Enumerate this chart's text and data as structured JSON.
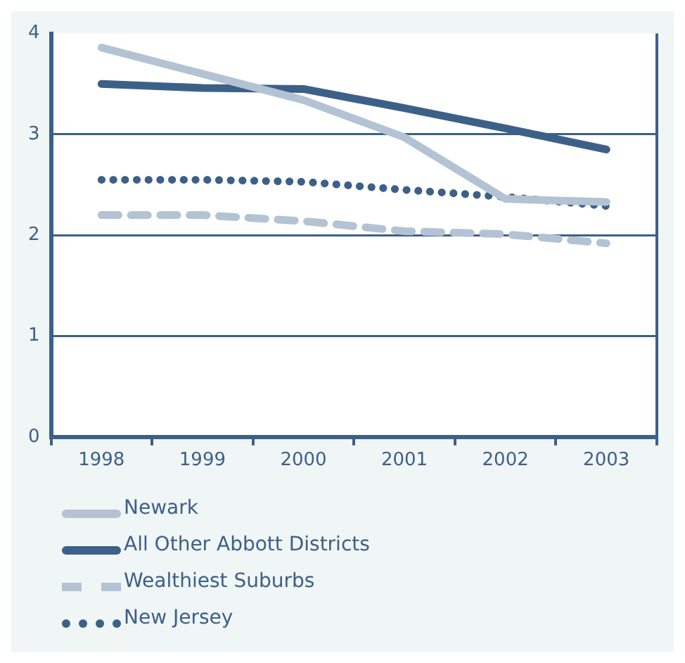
{
  "chart_data": {
    "type": "line",
    "categories": [
      "1998",
      "1999",
      "2000",
      "2001",
      "2002",
      "2003"
    ],
    "series": [
      {
        "name": "Newark",
        "color": "#b3c3d3",
        "line_style": "solid",
        "values": [
          3.86,
          3.6,
          3.34,
          2.97,
          2.36,
          2.33
        ]
      },
      {
        "name": "All Other Abbott Districts",
        "color": "#3d6088",
        "line_style": "solid",
        "values": [
          3.5,
          3.46,
          3.45,
          3.26,
          3.06,
          2.85
        ]
      },
      {
        "name": "Wealthiest Suburbs",
        "color": "#b3c3d3",
        "line_style": "dashed",
        "values": [
          2.2,
          2.2,
          2.14,
          2.04,
          2.01,
          1.92
        ]
      },
      {
        "name": "New Jersey",
        "color": "#3d6088",
        "line_style": "dotted",
        "values": [
          2.55,
          2.55,
          2.53,
          2.45,
          2.38,
          2.29
        ]
      }
    ],
    "ylim": [
      0,
      4
    ],
    "yticks": [
      0,
      1,
      2,
      3,
      4
    ],
    "grid": "y",
    "legend": "bottom",
    "marker": "none"
  }
}
